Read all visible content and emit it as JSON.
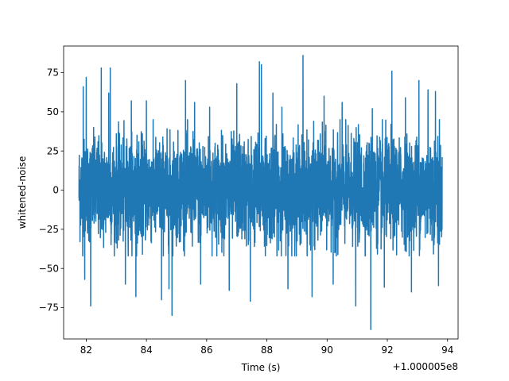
{
  "chart_data": {
    "type": "line",
    "title": "",
    "xlabel": "Time (s)",
    "ylabel": "whitened-noise",
    "x_offset_label": "+1.000005e8",
    "xlim": [
      81.25,
      94.35
    ],
    "ylim": [
      -95,
      92
    ],
    "xticks": [
      82,
      84,
      86,
      88,
      90,
      92,
      94
    ],
    "xtick_labels": [
      "82",
      "84",
      "86",
      "88",
      "90",
      "92",
      "94"
    ],
    "yticks": [
      -75,
      -50,
      -25,
      0,
      25,
      50,
      75
    ],
    "ytick_labels": [
      "−75",
      "−50",
      "−25",
      "0",
      "25",
      "50",
      "75"
    ],
    "grid": false,
    "legend": "none",
    "series": [
      {
        "x_start": 81.76,
        "x_end": 93.82,
        "color": "#1f77b4",
        "sigma": 16,
        "body_range": [
          -42,
          45
        ],
        "spikes": [
          {
            "x": 81.9,
            "y": 66
          },
          {
            "x": 81.95,
            "y": -57
          },
          {
            "x": 82.0,
            "y": 72
          },
          {
            "x": 82.15,
            "y": -74
          },
          {
            "x": 82.5,
            "y": 78
          },
          {
            "x": 82.75,
            "y": 62
          },
          {
            "x": 82.8,
            "y": 78
          },
          {
            "x": 83.3,
            "y": -60
          },
          {
            "x": 83.5,
            "y": 57
          },
          {
            "x": 83.65,
            "y": -68
          },
          {
            "x": 84.0,
            "y": 57
          },
          {
            "x": 84.5,
            "y": -70
          },
          {
            "x": 84.75,
            "y": -63
          },
          {
            "x": 84.85,
            "y": -80
          },
          {
            "x": 85.3,
            "y": 70
          },
          {
            "x": 85.6,
            "y": 56
          },
          {
            "x": 85.8,
            "y": -60
          },
          {
            "x": 86.1,
            "y": 53
          },
          {
            "x": 86.75,
            "y": -64
          },
          {
            "x": 87.0,
            "y": 68
          },
          {
            "x": 87.45,
            "y": -71
          },
          {
            "x": 87.75,
            "y": 82
          },
          {
            "x": 87.82,
            "y": 80
          },
          {
            "x": 88.2,
            "y": 62
          },
          {
            "x": 88.5,
            "y": 53
          },
          {
            "x": 88.7,
            "y": -63
          },
          {
            "x": 89.2,
            "y": 86
          },
          {
            "x": 89.5,
            "y": -68
          },
          {
            "x": 89.9,
            "y": 60
          },
          {
            "x": 90.2,
            "y": -60
          },
          {
            "x": 90.5,
            "y": 56
          },
          {
            "x": 90.95,
            "y": -74
          },
          {
            "x": 91.45,
            "y": -89
          },
          {
            "x": 91.5,
            "y": 52
          },
          {
            "x": 91.9,
            "y": -62
          },
          {
            "x": 92.15,
            "y": 76
          },
          {
            "x": 92.6,
            "y": 59
          },
          {
            "x": 92.8,
            "y": -65
          },
          {
            "x": 93.05,
            "y": 70
          },
          {
            "x": 93.35,
            "y": 64
          },
          {
            "x": 93.6,
            "y": 63
          },
          {
            "x": 93.7,
            "y": -61
          }
        ]
      }
    ]
  }
}
